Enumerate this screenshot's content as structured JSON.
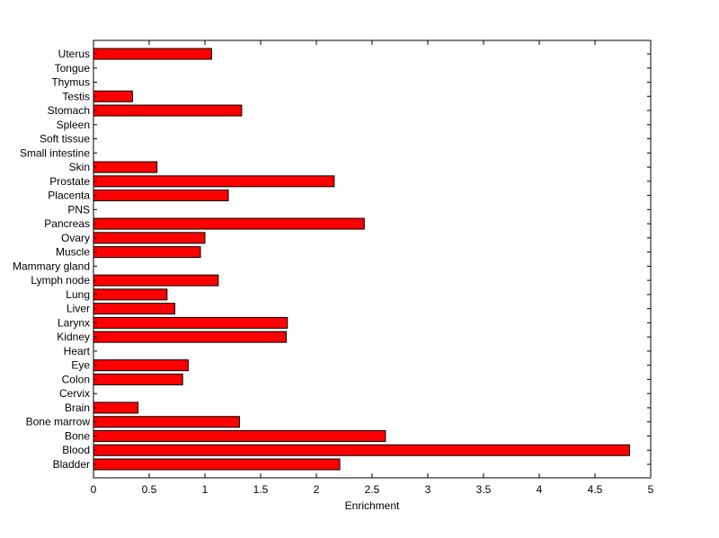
{
  "chart_data": {
    "type": "bar",
    "orientation": "horizontal",
    "categories": [
      "Bladder",
      "Blood",
      "Bone",
      "Bone marrow",
      "Brain",
      "Cervix",
      "Colon",
      "Eye",
      "Heart",
      "Kidney",
      "Larynx",
      "Liver",
      "Lung",
      "Lymph node",
      "Mammary gland",
      "Muscle",
      "Ovary",
      "Pancreas",
      "PNS",
      "Placenta",
      "Prostate",
      "Skin",
      "Small intestine",
      "Soft tissue",
      "Spleen",
      "Stomach",
      "Testis",
      "Thymus",
      "Tongue",
      "Uterus"
    ],
    "values": [
      2.21,
      4.81,
      2.62,
      1.31,
      0.4,
      0,
      0.8,
      0.85,
      0,
      1.73,
      1.74,
      0.73,
      0.66,
      1.12,
      0,
      0.96,
      1.0,
      2.43,
      0,
      1.21,
      2.16,
      0.57,
      0,
      0,
      0,
      1.33,
      0.35,
      0,
      0,
      1.06
    ],
    "title": "",
    "xlabel": "Enrichment",
    "ylabel": "",
    "xlim": [
      0,
      5
    ],
    "xticks": [
      "0",
      "0.5",
      "1",
      "1.5",
      "2",
      "2.5",
      "3",
      "3.5",
      "4",
      "4.5",
      "5"
    ],
    "bar_color": "#ff0000",
    "grid": false,
    "legend": "none"
  }
}
